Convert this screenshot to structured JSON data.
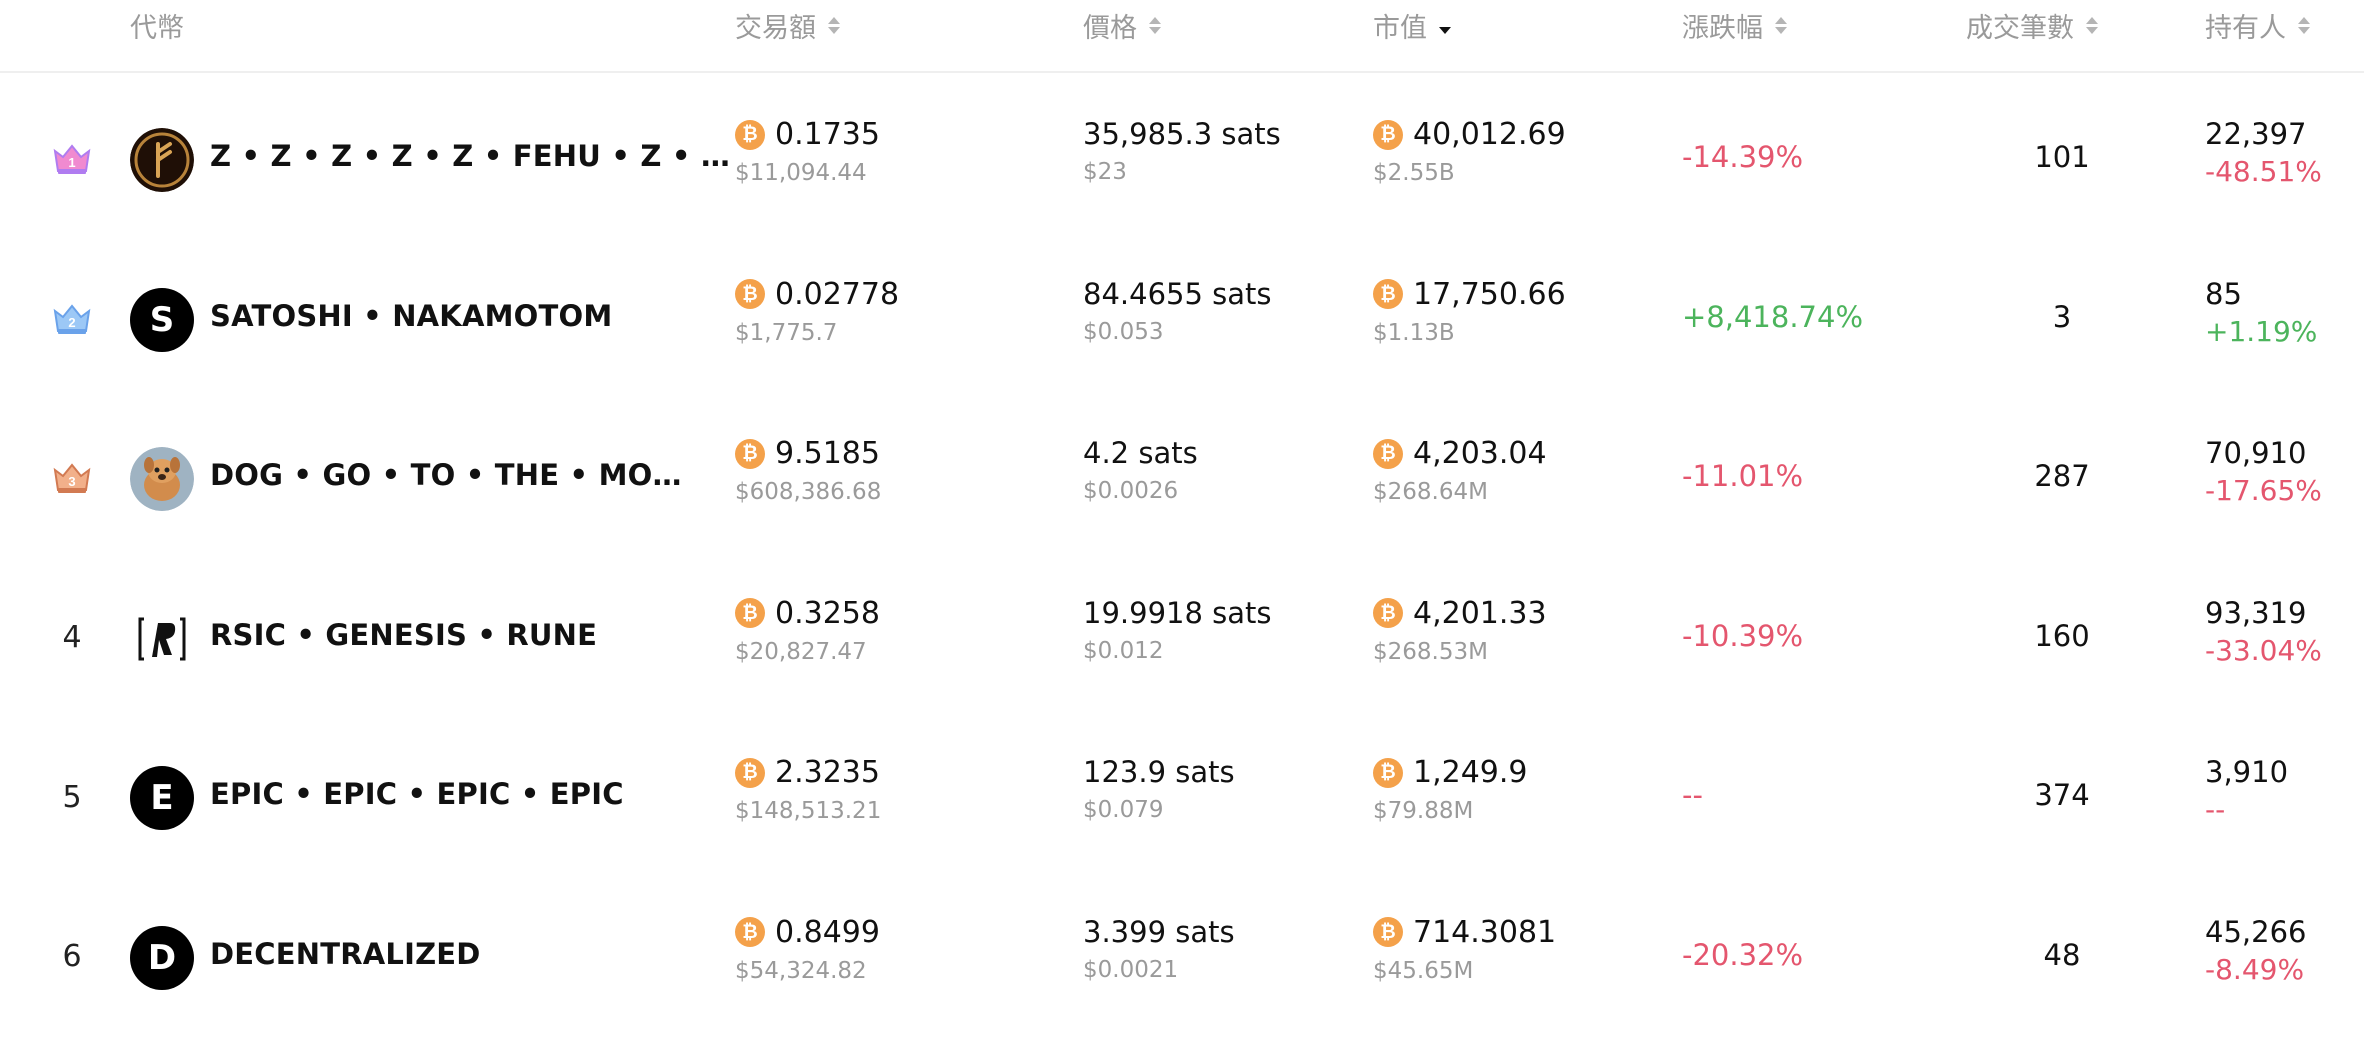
{
  "header": {
    "token": "代幣",
    "volume": "交易額",
    "price": "價格",
    "market_cap": "市值",
    "change": "漲跌幅",
    "transactions": "成交筆數",
    "holders": "持有人"
  },
  "rows": [
    {
      "rank": "1",
      "rank_badge": "gold-crown",
      "avatar": "fehu-rune-logo",
      "name": "Z • Z • Z • Z • Z • FEHU • Z • …",
      "volume_btc": "0.1735",
      "volume_usd": "$11,094.44",
      "price_sats": "35,985.3 sats",
      "price_usd": "$23",
      "mcap_btc": "40,012.69",
      "mcap_usd": "$2.55B",
      "change": "-14.39%",
      "tx_count": "101",
      "holders": "22,397",
      "holders_change": "-48.51%"
    },
    {
      "rank": "2",
      "rank_badge": "silver-crown",
      "avatar": "S",
      "name": "SATOSHI • NAKAMOTOM",
      "volume_btc": "0.02778",
      "volume_usd": "$1,775.7",
      "price_sats": "84.4655 sats",
      "price_usd": "$0.053",
      "mcap_btc": "17,750.66",
      "mcap_usd": "$1.13B",
      "change": "+8,418.74%",
      "tx_count": "3",
      "holders": "85",
      "holders_change": "+1.19%"
    },
    {
      "rank": "3",
      "rank_badge": "bronze-crown",
      "avatar": "dog-photo",
      "name": "DOG • GO • TO • THE • MO…",
      "volume_btc": "9.5185",
      "volume_usd": "$608,386.68",
      "price_sats": "4.2 sats",
      "price_usd": "$0.0026",
      "mcap_btc": "4,203.04",
      "mcap_usd": "$268.64M",
      "change": "-11.01%",
      "tx_count": "287",
      "holders": "70,910",
      "holders_change": "-17.65%"
    },
    {
      "rank": "4",
      "rank_badge": "",
      "avatar": "rsic-logo",
      "name": "RSIC • GENESIS • RUNE",
      "volume_btc": "0.3258",
      "volume_usd": "$20,827.47",
      "price_sats": "19.9918 sats",
      "price_usd": "$0.012",
      "mcap_btc": "4,201.33",
      "mcap_usd": "$268.53M",
      "change": "-10.39%",
      "tx_count": "160",
      "holders": "93,319",
      "holders_change": "-33.04%"
    },
    {
      "rank": "5",
      "rank_badge": "",
      "avatar": "E",
      "name": "EPIC • EPIC • EPIC • EPIC",
      "volume_btc": "2.3235",
      "volume_usd": "$148,513.21",
      "price_sats": "123.9 sats",
      "price_usd": "$0.079",
      "mcap_btc": "1,249.9",
      "mcap_usd": "$79.88M",
      "change": "--",
      "tx_count": "374",
      "holders": "3,910",
      "holders_change": "--"
    },
    {
      "rank": "6",
      "rank_badge": "",
      "avatar": "D",
      "name": "DECENTRALIZED",
      "volume_btc": "0.8499",
      "volume_usd": "$54,324.82",
      "price_sats": "3.399 sats",
      "price_usd": "$0.0021",
      "mcap_btc": "714.3081",
      "mcap_usd": "$45.65M",
      "change": "-20.32%",
      "tx_count": "48",
      "holders": "45,266",
      "holders_change": "-8.49%"
    }
  ],
  "colors": {
    "negative": "#e4566e",
    "positive": "#4cb45c",
    "btc": "#f4a14a"
  },
  "btc_symbol": "₿"
}
